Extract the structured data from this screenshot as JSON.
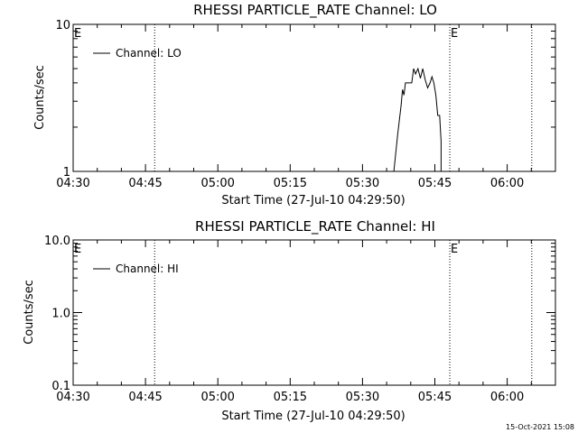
{
  "chart_data": [
    {
      "type": "line",
      "title": "RHESSI PARTICLE_RATE Channel: LO",
      "xlabel": "Start Time (27-Jul-10 04:29:50)",
      "ylabel": "Counts/sec",
      "yscale": "log",
      "ylim": [
        1,
        10
      ],
      "y_ticks": [
        "1",
        "10"
      ],
      "x_ticks": [
        "04:30",
        "04:45",
        "05:00",
        "05:15",
        "05:30",
        "05:45",
        "06:00"
      ],
      "x_tick_minutes": [
        0,
        15,
        30,
        45,
        60,
        75,
        90
      ],
      "xlim_minutes": [
        0,
        100
      ],
      "event_lines_minutes": [
        16.9,
        78.1,
        95.1
      ],
      "event_markers": [
        "E",
        "E"
      ],
      "legend": "top-left",
      "series": [
        {
          "name": "Channel: LO",
          "x_minutes": [
            66.5,
            67.3,
            68.0,
            68.3,
            68.6,
            68.9,
            69.2,
            69.5,
            70.2,
            70.6,
            71.0,
            71.5,
            72.0,
            72.5,
            73.0,
            73.5,
            74.0,
            74.4,
            74.8,
            75.2,
            75.6,
            76.0,
            76.3,
            76.3
          ],
          "y": [
            1,
            1.8,
            2.8,
            3.6,
            3.3,
            4.0,
            4.0,
            4.0,
            4.0,
            5.0,
            4.6,
            5.0,
            4.3,
            5.0,
            4.2,
            3.7,
            4.0,
            4.4,
            4.0,
            3.3,
            2.4,
            2.4,
            1.6,
            1
          ]
        }
      ]
    },
    {
      "type": "line",
      "title": "RHESSI PARTICLE_RATE Channel: HI",
      "xlabel": "Start Time (27-Jul-10 04:29:50)",
      "ylabel": "Counts/sec",
      "yscale": "log",
      "ylim": [
        0.1,
        10
      ],
      "y_ticks": [
        "0.1",
        "1.0",
        "10.0"
      ],
      "x_ticks": [
        "04:30",
        "04:45",
        "05:00",
        "05:15",
        "05:30",
        "05:45",
        "06:00"
      ],
      "x_tick_minutes": [
        0,
        15,
        30,
        45,
        60,
        75,
        90
      ],
      "xlim_minutes": [
        0,
        100
      ],
      "event_lines_minutes": [
        16.9,
        78.1,
        95.1
      ],
      "event_markers": [
        "E",
        "E"
      ],
      "legend": "top-left",
      "series": [
        {
          "name": "Channel: HI",
          "x_minutes": [],
          "y": []
        }
      ]
    }
  ],
  "timestamp": "15-Oct-2021 15:08"
}
